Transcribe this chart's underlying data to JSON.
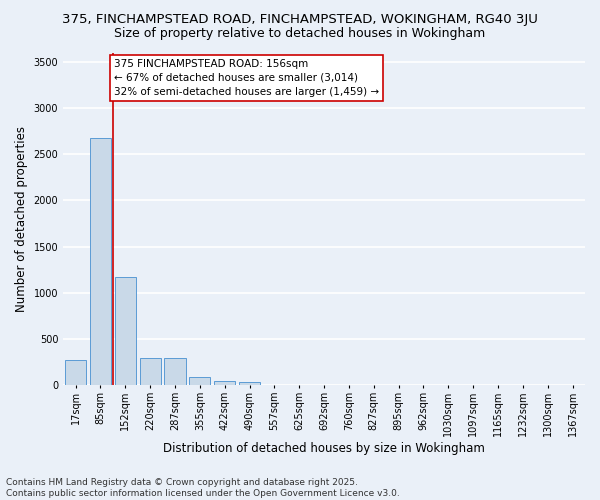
{
  "title_line1": "375, FINCHAMPSTEAD ROAD, FINCHAMPSTEAD, WOKINGHAM, RG40 3JU",
  "title_line2": "Size of property relative to detached houses in Wokingham",
  "xlabel": "Distribution of detached houses by size in Wokingham",
  "ylabel": "Number of detached properties",
  "categories": [
    "17sqm",
    "85sqm",
    "152sqm",
    "220sqm",
    "287sqm",
    "355sqm",
    "422sqm",
    "490sqm",
    "557sqm",
    "625sqm",
    "692sqm",
    "760sqm",
    "827sqm",
    "895sqm",
    "962sqm",
    "1030sqm",
    "1097sqm",
    "1165sqm",
    "1232sqm",
    "1300sqm",
    "1367sqm"
  ],
  "values": [
    270,
    2680,
    1170,
    300,
    295,
    90,
    50,
    35,
    0,
    0,
    0,
    0,
    0,
    0,
    0,
    0,
    0,
    0,
    0,
    0,
    0
  ],
  "bar_color": "#c9d9e8",
  "bar_edge_color": "#5b9bd5",
  "red_line_index": 2,
  "annotation_text": "375 FINCHAMPSTEAD ROAD: 156sqm\n← 67% of detached houses are smaller (3,014)\n32% of semi-detached houses are larger (1,459) →",
  "annotation_box_color": "#ffffff",
  "annotation_box_edge": "#cc0000",
  "red_line_color": "#cc0000",
  "ylim": [
    0,
    3600
  ],
  "yticks": [
    0,
    500,
    1000,
    1500,
    2000,
    2500,
    3000,
    3500
  ],
  "background_color": "#eaf0f8",
  "grid_color": "#ffffff",
  "footer_line1": "Contains HM Land Registry data © Crown copyright and database right 2025.",
  "footer_line2": "Contains public sector information licensed under the Open Government Licence v3.0.",
  "title_fontsize": 9.5,
  "subtitle_fontsize": 9,
  "axis_label_fontsize": 8.5,
  "tick_fontsize": 7,
  "annotation_fontsize": 7.5,
  "footer_fontsize": 6.5
}
